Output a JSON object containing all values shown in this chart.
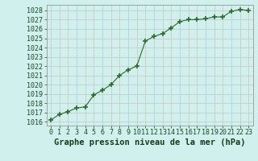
{
  "x": [
    0,
    1,
    2,
    3,
    4,
    5,
    6,
    7,
    8,
    9,
    10,
    11,
    12,
    13,
    14,
    15,
    16,
    17,
    18,
    19,
    20,
    21,
    22,
    23
  ],
  "y": [
    1016.2,
    1016.8,
    1017.1,
    1017.5,
    1017.6,
    1018.9,
    1019.4,
    1020.0,
    1021.0,
    1021.6,
    1022.0,
    1024.7,
    1025.2,
    1025.5,
    1026.1,
    1026.8,
    1027.0,
    1027.0,
    1027.1,
    1027.3,
    1027.3,
    1027.9,
    1028.1,
    1028.0
  ],
  "line_color": "#2d6a2d",
  "marker": "+",
  "marker_size": 5,
  "bg_color": "#d0f0ee",
  "grid_color": "#c0c8c0",
  "xlabel": "Graphe pression niveau de la mer (hPa)",
  "xlabel_fontsize": 7.5,
  "ylabel_ticks": [
    1016,
    1017,
    1018,
    1019,
    1020,
    1021,
    1022,
    1023,
    1024,
    1025,
    1026,
    1027,
    1028
  ],
  "xlim": [
    -0.5,
    23.5
  ],
  "ylim": [
    1015.6,
    1028.6
  ],
  "tick_fontsize": 6.0
}
